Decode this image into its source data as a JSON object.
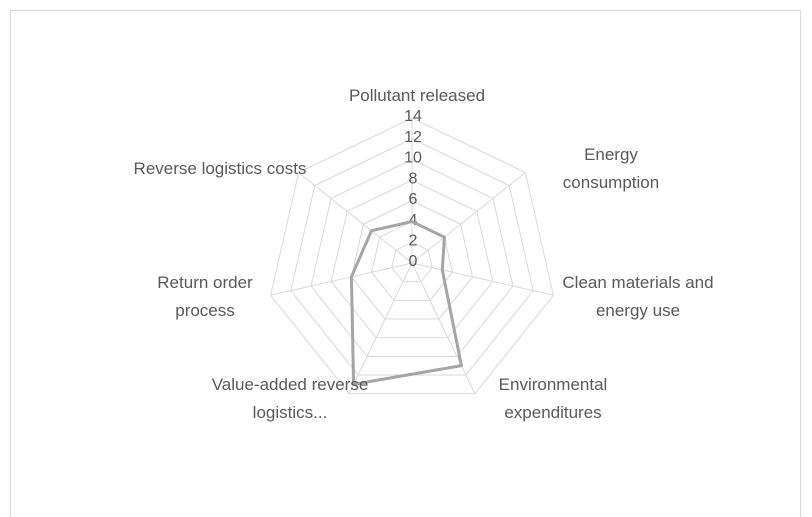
{
  "chart_data": {
    "type": "radar",
    "categories": [
      "Pollutant released",
      "Energy consumption",
      "Clean materials and energy use",
      "Environmental expenditures",
      "Value-added reverse logistics...",
      "Return order process",
      "Reverse logistics costs"
    ],
    "series": [
      {
        "color": "#a5a5a5",
        "values": [
          4,
          4,
          3,
          11,
          13,
          6,
          5
        ]
      }
    ],
    "ylim": [
      0,
      14
    ],
    "yticks": [
      0,
      2,
      4,
      6,
      8,
      10,
      12,
      14
    ],
    "grid": true
  }
}
